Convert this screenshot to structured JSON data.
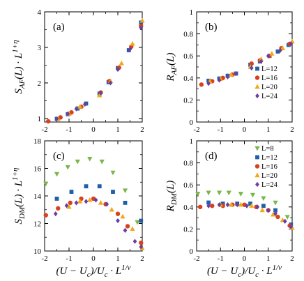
{
  "chart_data": [
    {
      "type": "scatter",
      "panel_label": "(a)",
      "ylabel": "S_AF(L) · L^(1+η)",
      "xlabel": "",
      "xlim": [
        -2,
        2
      ],
      "ylim": [
        0.9,
        4
      ],
      "xticks": [
        "-2",
        "-1",
        "0",
        "1",
        "2"
      ],
      "yticks": [
        "1",
        "2",
        "3",
        "4"
      ],
      "legend": null,
      "series": [
        {
          "name": "L=12",
          "color": "#1f5fa8",
          "marker": "square",
          "x": [
            -1.5,
            -1.05,
            -0.65,
            -0.3,
            0.25,
            0.62,
            1.0,
            1.45,
            1.95
          ],
          "y": [
            0.99,
            1.12,
            1.28,
            1.42,
            1.7,
            2.02,
            2.42,
            2.92,
            3.7
          ]
        },
        {
          "name": "L=16",
          "color": "#d9411e",
          "marker": "circle",
          "x": [
            -1.85,
            -1.35,
            -0.9,
            -0.5,
            0.3,
            0.65,
            1.05,
            1.55,
            1.95
          ],
          "y": [
            0.92,
            1.03,
            1.17,
            1.33,
            1.73,
            2.05,
            2.43,
            3.02,
            3.6
          ]
        },
        {
          "name": "L=20",
          "color": "#f0a818",
          "marker": "triangle",
          "x": [
            -1.45,
            -1.0,
            -0.55,
            0.25,
            0.7,
            1.15,
            1.6,
            2.0
          ],
          "y": [
            0.98,
            1.13,
            1.33,
            1.65,
            2.05,
            2.55,
            3.1,
            3.75
          ]
        },
        {
          "name": "L=24",
          "color": "#6a3fa0",
          "marker": "diamond",
          "x": [
            -1.5,
            -1.05,
            -0.7,
            -0.35,
            0.3,
            0.7,
            1.0,
            1.5,
            1.95
          ],
          "y": [
            0.99,
            1.13,
            1.27,
            1.4,
            1.72,
            2.0,
            2.38,
            2.95,
            3.55
          ]
        }
      ]
    },
    {
      "type": "scatter",
      "panel_label": "(b)",
      "ylabel": "R_AF(L)",
      "xlabel": "",
      "xlim": [
        -2,
        2
      ],
      "ylim": [
        0,
        1
      ],
      "xticks": [
        "-2",
        "-1",
        "0",
        "1",
        "2"
      ],
      "yticks": [
        "0",
        "0.2",
        "0.4",
        "0.6",
        "0.8",
        "1"
      ],
      "legend": {
        "position": "bottom-right",
        "entries": [
          "L=12",
          "L=16",
          "L=20",
          "L=24"
        ]
      },
      "series": [
        {
          "name": "L=12",
          "color": "#1f5fa8",
          "marker": "square",
          "x": [
            -1.5,
            -1.05,
            -0.7,
            -0.35,
            0.25,
            0.65,
            1.05,
            1.4,
            1.85
          ],
          "y": [
            0.375,
            0.395,
            0.42,
            0.44,
            0.52,
            0.55,
            0.6,
            0.64,
            0.7
          ]
        },
        {
          "name": "L=16",
          "color": "#d9411e",
          "marker": "circle",
          "x": [
            -1.8,
            -1.35,
            -0.9,
            -0.5,
            0.3,
            0.65,
            1.05,
            1.55,
            1.9
          ],
          "y": [
            0.34,
            0.37,
            0.4,
            0.43,
            0.53,
            0.56,
            0.6,
            0.67,
            0.71
          ]
        },
        {
          "name": "L=20",
          "color": "#f0a818",
          "marker": "triangle",
          "x": [
            -1.45,
            -1.0,
            -0.55,
            0.25,
            0.7,
            1.15,
            1.6,
            2.0
          ],
          "y": [
            0.37,
            0.39,
            0.43,
            0.5,
            0.57,
            0.62,
            0.67,
            0.73
          ]
        },
        {
          "name": "L=24",
          "color": "#6a3fa0",
          "marker": "diamond",
          "x": [
            -1.5,
            -1.05,
            -0.7,
            -0.35,
            0.3,
            0.7,
            1.0,
            1.5,
            1.95
          ],
          "y": [
            0.35,
            0.38,
            0.41,
            0.44,
            0.49,
            0.55,
            0.6,
            0.65,
            0.71
          ]
        }
      ]
    },
    {
      "type": "scatter",
      "panel_label": "(c)",
      "ylabel": "S_DM(L) · L^(1+η)",
      "xlabel": "(U − U_c)/U_c · L^(1/ν)",
      "xlim": [
        -2,
        2
      ],
      "ylim": [
        10,
        18
      ],
      "xticks": [
        "-2",
        "-1",
        "0",
        "1",
        "2"
      ],
      "yticks": [
        "10",
        "12",
        "14",
        "16",
        "18"
      ],
      "legend": null,
      "series": [
        {
          "name": "L=8",
          "color": "#7ab648",
          "marker": "triangle-down",
          "x": [
            -1.95,
            -1.5,
            -1.05,
            -0.65,
            -0.15,
            0.35,
            0.8,
            1.3,
            1.8
          ],
          "y": [
            14.9,
            15.6,
            16.1,
            16.5,
            16.7,
            16.5,
            15.7,
            14.4,
            12.1
          ]
        },
        {
          "name": "L=12",
          "color": "#1f5fa8",
          "marker": "square",
          "x": [
            -1.5,
            -0.9,
            -0.3,
            0.25,
            0.8,
            1.3,
            1.95
          ],
          "y": [
            13.8,
            14.3,
            14.7,
            14.7,
            14.3,
            13.5,
            12.2
          ]
        },
        {
          "name": "L=16",
          "color": "#d9411e",
          "marker": "circle",
          "x": [
            -1.95,
            -1.45,
            -0.95,
            -0.5,
            0.0,
            0.5,
            1.0,
            1.4,
            1.95
          ],
          "y": [
            12.6,
            13.1,
            13.5,
            13.8,
            13.8,
            13.4,
            12.7,
            11.8,
            10.6
          ]
        },
        {
          "name": "L=20",
          "color": "#f0a818",
          "marker": "triangle",
          "x": [
            -1.0,
            -0.55,
            -0.15,
            0.3,
            0.75,
            1.2,
            1.6,
            2.0
          ],
          "y": [
            13.2,
            13.6,
            13.7,
            13.5,
            13.0,
            12.5,
            11.6,
            10.2
          ]
        },
        {
          "name": "L=24",
          "color": "#6a3fa0",
          "marker": "diamond",
          "x": [
            -1.55,
            -1.1,
            -0.7,
            -0.3,
            0.1,
            0.55,
            1.0,
            1.3,
            1.7,
            1.95
          ],
          "y": [
            12.7,
            13.3,
            13.5,
            13.6,
            13.7,
            13.4,
            12.2,
            11.5,
            10.7,
            10.3
          ]
        }
      ]
    },
    {
      "type": "scatter",
      "panel_label": "(d)",
      "ylabel": "R_DM(L)",
      "xlabel": "(U − U_c)/U_c · L^(1/ν)",
      "xlim": [
        -2,
        2
      ],
      "ylim": [
        0,
        1
      ],
      "xticks": [
        "-2",
        "-1",
        "0",
        "1",
        "2"
      ],
      "yticks": [
        "0",
        "0.2",
        "0.4",
        "0.6",
        "0.8",
        "1"
      ],
      "legend": {
        "position": "top-right",
        "entries": [
          "L=8",
          "L=12",
          "L=16",
          "L=20",
          "L=24"
        ]
      },
      "series": [
        {
          "name": "L=8",
          "color": "#7ab648",
          "marker": "triangle-down",
          "x": [
            -1.95,
            -1.5,
            -1.05,
            -0.65,
            -0.15,
            0.35,
            0.8,
            1.3,
            1.8
          ],
          "y": [
            0.52,
            0.53,
            0.53,
            0.53,
            0.52,
            0.51,
            0.48,
            0.44,
            0.31
          ]
        },
        {
          "name": "L=12",
          "color": "#1f5fa8",
          "marker": "square",
          "x": [
            -1.5,
            -0.9,
            -0.3,
            0.25,
            0.8,
            1.3,
            1.95
          ],
          "y": [
            0.44,
            0.43,
            0.43,
            0.43,
            0.41,
            0.37,
            0.24
          ]
        },
        {
          "name": "L=16",
          "color": "#d9411e",
          "marker": "circle",
          "x": [
            -1.85,
            -1.35,
            -0.9,
            -0.5,
            0.0,
            0.5,
            1.0,
            1.4,
            1.9
          ],
          "y": [
            0.4,
            0.41,
            0.41,
            0.42,
            0.42,
            0.4,
            0.37,
            0.31,
            0.23
          ]
        },
        {
          "name": "L=20",
          "color": "#f0a818",
          "marker": "triangle",
          "x": [
            -1.0,
            -0.55,
            -0.15,
            0.3,
            0.75,
            1.2,
            1.6,
            2.0
          ],
          "y": [
            0.42,
            0.42,
            0.42,
            0.41,
            0.37,
            0.33,
            0.28,
            0.21
          ]
        },
        {
          "name": "L=24",
          "color": "#6a3fa0",
          "marker": "diamond",
          "x": [
            -1.5,
            -1.05,
            -0.7,
            -0.3,
            0.1,
            0.55,
            1.0,
            1.3,
            1.7,
            1.95
          ],
          "y": [
            0.41,
            0.42,
            0.42,
            0.42,
            0.41,
            0.4,
            0.37,
            0.34,
            0.27,
            0.22
          ]
        }
      ]
    }
  ]
}
